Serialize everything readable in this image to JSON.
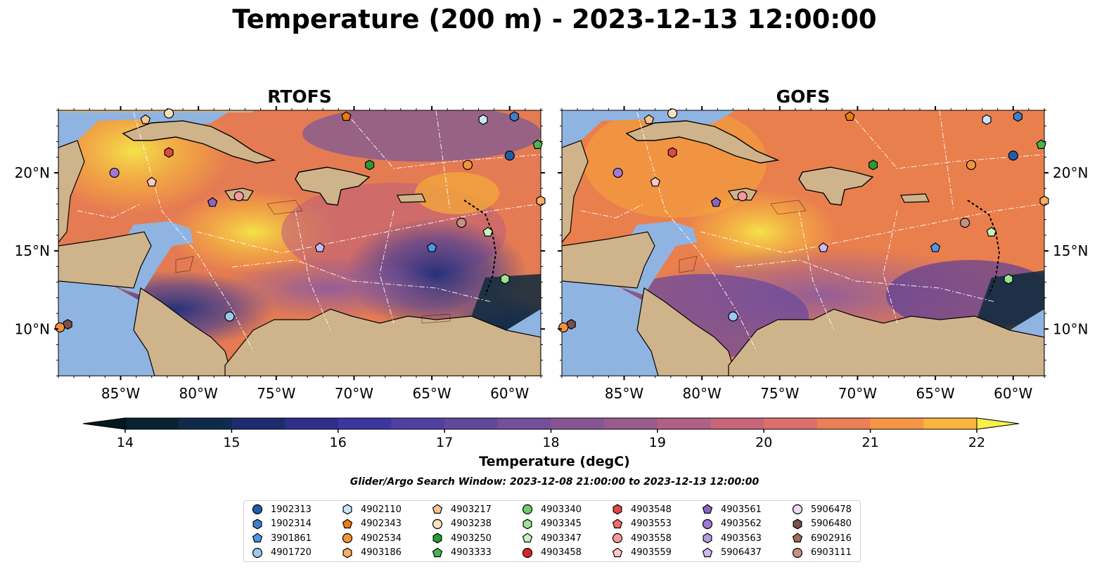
{
  "title": "Temperature (200 m) - 2023-12-13 12:00:00",
  "panels": [
    {
      "title": "RTOFS",
      "lat_ticks": [
        "20°N",
        "15°N",
        "10°N"
      ],
      "lon_ticks": [
        "85°W",
        "80°W",
        "75°W",
        "70°W",
        "65°W",
        "60°W"
      ],
      "lat_label_side": "left"
    },
    {
      "title": "GOFS",
      "lat_ticks": [
        "20°N",
        "15°N",
        "10°N"
      ],
      "lon_ticks": [
        "85°W",
        "80°W",
        "75°W",
        "70°W",
        "65°W",
        "60°W"
      ],
      "lat_label_side": "right"
    }
  ],
  "map_extent": {
    "lon_min": -89,
    "lon_max": -58,
    "lat_min": 7,
    "lat_max": 24
  },
  "colorbar": {
    "label": "Temperature (degC)",
    "ticks": [
      "14",
      "15",
      "16",
      "17",
      "18",
      "19",
      "20",
      "21",
      "22"
    ],
    "vmin": 14,
    "vmax": 22,
    "step": 0.5,
    "extend": "both",
    "colormap": "thermal"
  },
  "colors": {
    "land": "#cfb38b",
    "shelf": "#8fb4e2",
    "coast": "#000000",
    "boundary": "#ffffff"
  },
  "search_window": "Glider/Argo Search Window: 2023-12-08 21:00:00 to 2023-12-13 12:00:00",
  "legend": [
    {
      "id": "1902313",
      "marker": "circle",
      "color": "#1f5fa8"
    },
    {
      "id": "1902314",
      "marker": "hexagon",
      "color": "#3f7fc8"
    },
    {
      "id": "3901861",
      "marker": "pentagon",
      "color": "#4f97e0"
    },
    {
      "id": "4901720",
      "marker": "circle",
      "color": "#9cc8ee"
    },
    {
      "id": "4902110",
      "marker": "hexagon",
      "color": "#c8e6fb"
    },
    {
      "id": "4902343",
      "marker": "pentagon",
      "color": "#f07a12"
    },
    {
      "id": "4902534",
      "marker": "circle",
      "color": "#f5923a"
    },
    {
      "id": "4903186",
      "marker": "hexagon",
      "color": "#f9ae60"
    },
    {
      "id": "4903217",
      "marker": "pentagon",
      "color": "#fbc592"
    },
    {
      "id": "4903238",
      "marker": "circle",
      "color": "#fde0c0"
    },
    {
      "id": "4903250",
      "marker": "hexagon",
      "color": "#2a9a35"
    },
    {
      "id": "4903333",
      "marker": "pentagon",
      "color": "#4ab44e"
    },
    {
      "id": "4903340",
      "marker": "circle",
      "color": "#6fcc6a"
    },
    {
      "id": "4903345",
      "marker": "hexagon",
      "color": "#9be393"
    },
    {
      "id": "4903347",
      "marker": "pentagon",
      "color": "#c6f2be"
    },
    {
      "id": "4903458",
      "marker": "circle",
      "color": "#d62728"
    },
    {
      "id": "4903548",
      "marker": "hexagon",
      "color": "#e04848"
    },
    {
      "id": "4903553",
      "marker": "pentagon",
      "color": "#ee6c6c"
    },
    {
      "id": "4903558",
      "marker": "circle",
      "color": "#f59a9a"
    },
    {
      "id": "4903559",
      "marker": "pentagon",
      "color": "#fbc7c7"
    },
    {
      "id": "4903561",
      "marker": "pentagon",
      "color": "#8c64c0"
    },
    {
      "id": "4903562",
      "marker": "circle",
      "color": "#a07ad0"
    },
    {
      "id": "4903563",
      "marker": "hexagon",
      "color": "#b79ae0"
    },
    {
      "id": "5906437",
      "marker": "pentagon",
      "color": "#cfb8ef"
    },
    {
      "id": "5906478",
      "marker": "circle",
      "color": "#f0d8f8"
    },
    {
      "id": "5906480",
      "marker": "hexagon",
      "color": "#7a5048"
    },
    {
      "id": "6902916",
      "marker": "pentagon",
      "color": "#a06a5c"
    },
    {
      "id": "6903111",
      "marker": "circle",
      "color": "#c8907e"
    }
  ],
  "floats": [
    {
      "id": "1902313",
      "lon": -60.0,
      "lat": 21.1
    },
    {
      "id": "1902314",
      "lon": -59.7,
      "lat": 23.6
    },
    {
      "id": "3901861",
      "lon": -65.0,
      "lat": 15.2
    },
    {
      "id": "4901720",
      "lon": -78.0,
      "lat": 10.8
    },
    {
      "id": "4902110",
      "lon": -61.7,
      "lat": 23.4
    },
    {
      "id": "4902343",
      "lon": -70.5,
      "lat": 23.6
    },
    {
      "id": "4902534",
      "lon": -62.7,
      "lat": 20.5
    },
    {
      "id": "4903186",
      "lon": -58.0,
      "lat": 18.2
    },
    {
      "id": "4903217",
      "lon": -83.4,
      "lat": 23.4
    },
    {
      "id": "4903238",
      "lon": -81.9,
      "lat": 23.8
    },
    {
      "id": "4903250",
      "lon": -69.0,
      "lat": 20.5
    },
    {
      "id": "4903333",
      "lon": -58.2,
      "lat": 21.8
    },
    {
      "id": "4903345",
      "lon": -60.3,
      "lat": 13.2
    },
    {
      "id": "4903347",
      "lon": -61.4,
      "lat": 16.2
    },
    {
      "id": "4903548",
      "lon": -81.9,
      "lat": 21.3
    },
    {
      "id": "4903558",
      "lon": -77.4,
      "lat": 18.5
    },
    {
      "id": "4903559",
      "lon": -83.0,
      "lat": 19.4
    },
    {
      "id": "4903561",
      "lon": -79.1,
      "lat": 18.1
    },
    {
      "id": "4903562",
      "lon": -85.4,
      "lat": 20.0
    },
    {
      "id": "5906437",
      "lon": -72.2,
      "lat": 15.2
    },
    {
      "id": "6903111",
      "lon": -63.1,
      "lat": 16.8
    },
    {
      "id": "5906480",
      "lon": -88.4,
      "lat": 10.3
    },
    {
      "id": "4902534",
      "lon": -88.9,
      "lat": 10.1
    }
  ]
}
